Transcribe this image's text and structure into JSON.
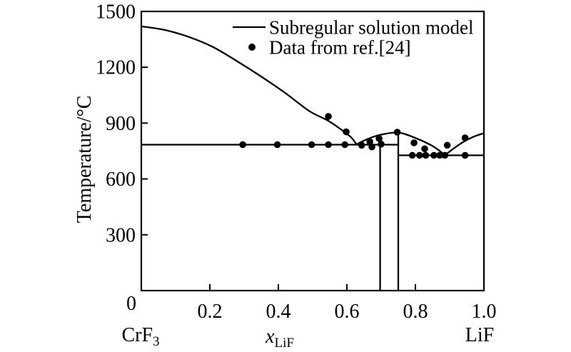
{
  "figure": {
    "background": "#ffffff",
    "ink_color": "#000000"
  },
  "chart_data": {
    "type": "line",
    "title": "",
    "ylabel": "Temperature/°C",
    "xlabel": {
      "base": "x",
      "sub": "LiF"
    },
    "x_end_labels": {
      "left": {
        "base": "CrF",
        "sub": "3"
      },
      "right": "LiF"
    },
    "origin_label": "0",
    "xlim": [
      0,
      1
    ],
    "ylim": [
      0,
      1500
    ],
    "grid": false,
    "x_ticks": [
      {
        "v": 0.2,
        "label": "0.2"
      },
      {
        "v": 0.4,
        "label": "0.4"
      },
      {
        "v": 0.6,
        "label": "0.6"
      },
      {
        "v": 0.8,
        "label": "0.8"
      },
      {
        "v": 1.0,
        "label": "1.0"
      }
    ],
    "y_ticks": [
      {
        "v": 300,
        "label": "300"
      },
      {
        "v": 600,
        "label": "600"
      },
      {
        "v": 900,
        "label": "900"
      },
      {
        "v": 1200,
        "label": "1200"
      },
      {
        "v": 1500,
        "label": "1500"
      }
    ],
    "legend": {
      "position": "top-right-inside",
      "items": [
        {
          "symbol": "line",
          "label": "Subregular solution model"
        },
        {
          "symbol": "dot",
          "label": "Data from ref.[24]"
        }
      ]
    },
    "model_curves": [
      {
        "name": "liquidus-CrF3",
        "smooth": true,
        "points": [
          [
            0,
            1420
          ],
          [
            0.07,
            1400
          ],
          [
            0.14,
            1362
          ],
          [
            0.21,
            1308
          ],
          [
            0.28,
            1232
          ],
          [
            0.35,
            1150
          ],
          [
            0.42,
            1062
          ],
          [
            0.49,
            965
          ],
          [
            0.545,
            913
          ],
          [
            0.585,
            863
          ],
          [
            0.612,
            824
          ],
          [
            0.628,
            786
          ]
        ]
      },
      {
        "name": "liquidus-compound",
        "smooth": true,
        "points": [
          [
            0.628,
            786
          ],
          [
            0.66,
            814
          ],
          [
            0.695,
            836
          ],
          [
            0.75,
            849
          ],
          [
            0.8,
            820
          ],
          [
            0.845,
            782
          ],
          [
            0.872,
            749
          ],
          [
            0.886,
            727
          ]
        ]
      },
      {
        "name": "liquidus-LiF",
        "smooth": true,
        "points": [
          [
            0.886,
            727
          ],
          [
            0.912,
            764
          ],
          [
            0.94,
            799
          ],
          [
            0.97,
            827
          ],
          [
            1.0,
            846
          ]
        ]
      },
      {
        "name": "eutectic-line-1",
        "smooth": false,
        "points": [
          [
            0,
            784
          ],
          [
            0.75,
            784
          ]
        ]
      },
      {
        "name": "eutectic-line-2",
        "smooth": false,
        "points": [
          [
            0.75,
            727
          ],
          [
            1.0,
            727
          ]
        ]
      },
      {
        "name": "compound-line-1",
        "smooth": false,
        "points": [
          [
            0.697,
            0
          ],
          [
            0.697,
            784
          ]
        ]
      },
      {
        "name": "compound-line-2",
        "smooth": false,
        "points": [
          [
            0.75,
            0
          ],
          [
            0.75,
            849
          ]
        ]
      }
    ],
    "data_points": [
      [
        0.296,
        784
      ],
      [
        0.397,
        784
      ],
      [
        0.497,
        784
      ],
      [
        0.546,
        784
      ],
      [
        0.594,
        784
      ],
      [
        0.546,
        936
      ],
      [
        0.598,
        853
      ],
      [
        0.643,
        781
      ],
      [
        0.667,
        800
      ],
      [
        0.673,
        772
      ],
      [
        0.694,
        817
      ],
      [
        0.7,
        787
      ],
      [
        0.747,
        851
      ],
      [
        0.796,
        794
      ],
      [
        0.827,
        762
      ],
      [
        0.893,
        781
      ],
      [
        0.791,
        727
      ],
      [
        0.812,
        727
      ],
      [
        0.83,
        727
      ],
      [
        0.854,
        727
      ],
      [
        0.871,
        727
      ],
      [
        0.886,
        727
      ],
      [
        0.945,
        727
      ],
      [
        0.945,
        821
      ]
    ]
  }
}
